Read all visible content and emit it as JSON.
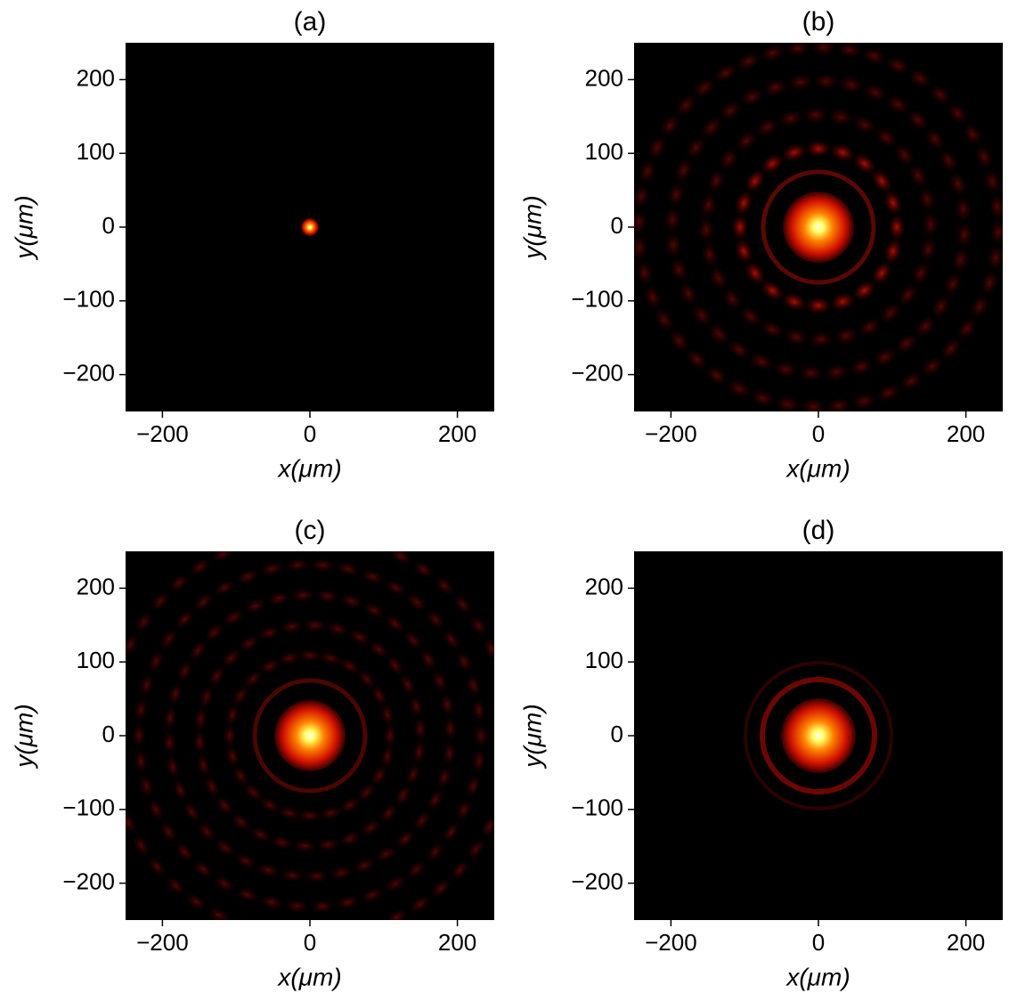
{
  "chart_data": [
    {
      "type": "image",
      "title": "(a)",
      "x_label": "x(μm)",
      "y_label": "y(μm)",
      "colormap": "hot",
      "xlim": [
        -250,
        250
      ],
      "ylim": [
        -250,
        250
      ],
      "xticks": [
        {
          "value": -200,
          "label": "−200"
        },
        0,
        200
      ],
      "yticks": [
        {
          "value": -200,
          "label": "−200"
        },
        {
          "value": -100,
          "label": "−100"
        },
        0,
        100,
        200
      ]
    },
    {
      "type": "image",
      "title": "(b)",
      "x_label": "x(μm)",
      "y_label": "y(μm)",
      "colormap": "hot",
      "xlim": [
        -250,
        250
      ],
      "ylim": [
        -250,
        250
      ],
      "xticks": [
        {
          "value": -200,
          "label": "−200"
        },
        0,
        200
      ],
      "yticks": [
        {
          "value": -200,
          "label": "−200"
        },
        {
          "value": -100,
          "label": "−100"
        },
        0,
        100,
        200
      ]
    },
    {
      "type": "image",
      "title": "(c)",
      "x_label": "x(μm)",
      "y_label": "y(μm)",
      "colormap": "hot",
      "xlim": [
        -250,
        250
      ],
      "ylim": [
        -250,
        250
      ],
      "xticks": [
        {
          "value": -200,
          "label": "−200"
        },
        0,
        200
      ],
      "yticks": [
        {
          "value": -200,
          "label": "−200"
        },
        {
          "value": -100,
          "label": "−100"
        },
        0,
        100,
        200
      ]
    },
    {
      "type": "image",
      "title": "(d)",
      "x_label": "x(μm)",
      "y_label": "y(μm)",
      "colormap": "hot",
      "xlim": [
        -250,
        250
      ],
      "ylim": [
        -250,
        250
      ],
      "xticks": [
        {
          "value": -200,
          "label": "−200"
        },
        0,
        200
      ],
      "yticks": [
        {
          "value": -200,
          "label": "−200"
        },
        {
          "value": -100,
          "label": "−100"
        },
        0,
        100,
        200
      ]
    }
  ]
}
